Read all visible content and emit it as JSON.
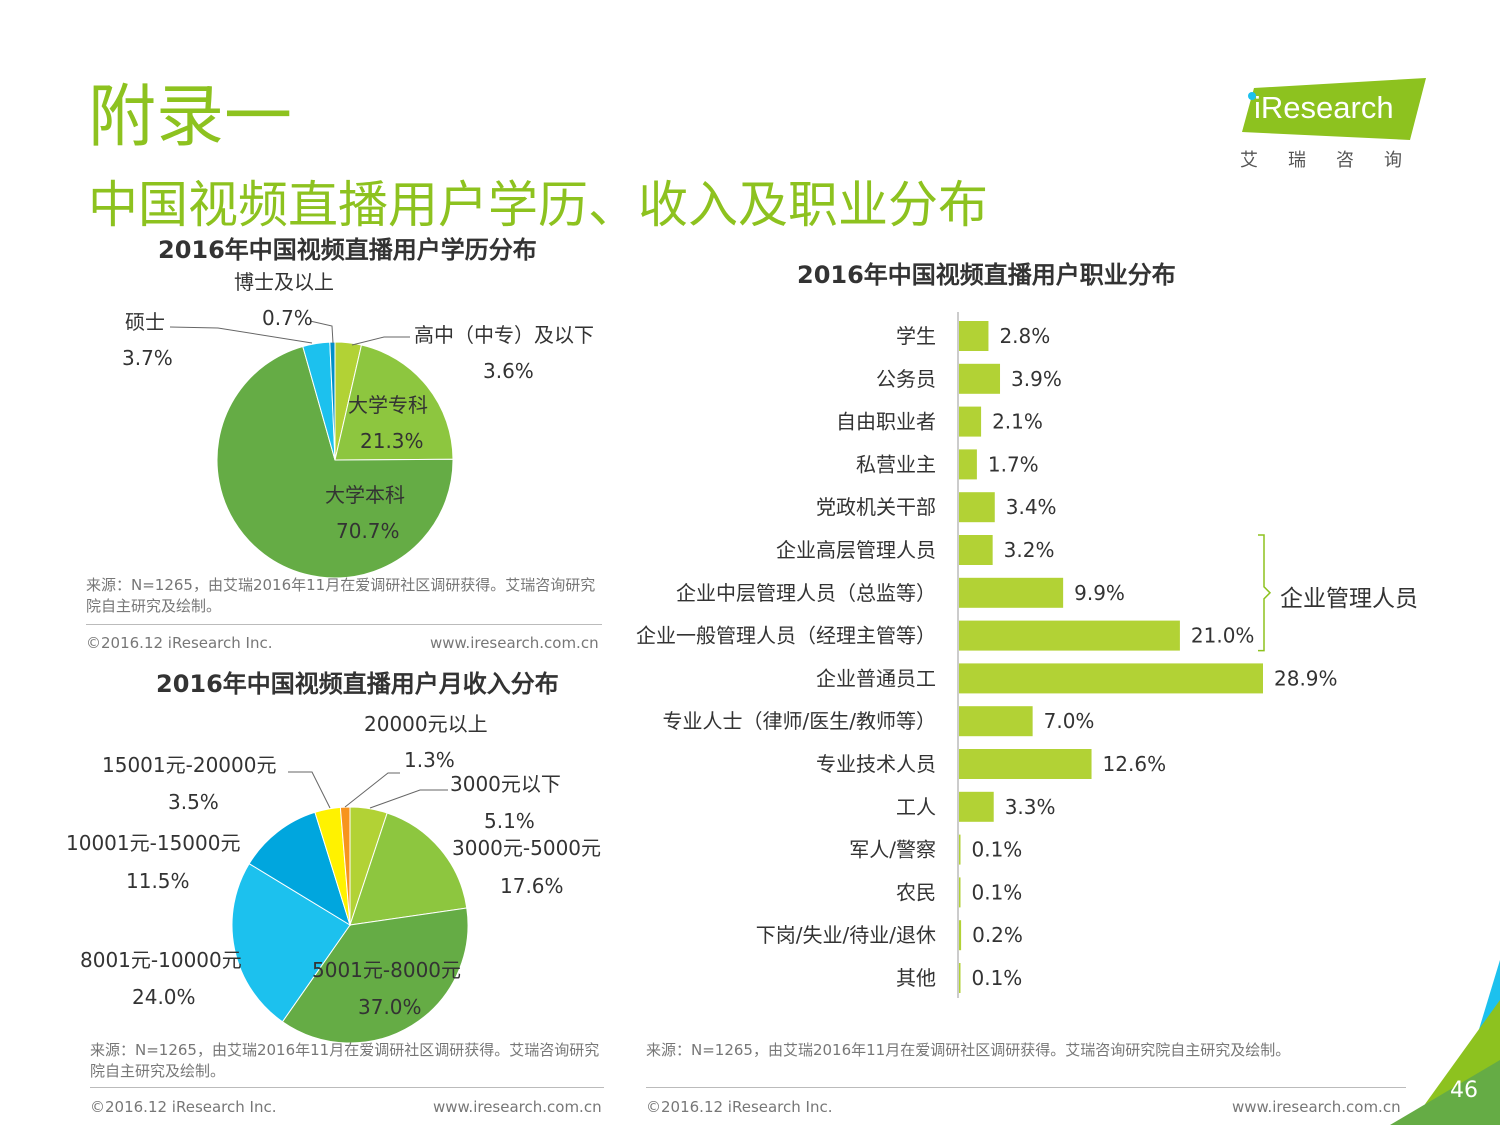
{
  "page": {
    "title": "附录一",
    "subtitle": "中国视频直播用户学历、收入及职业分布",
    "page_number": "46"
  },
  "logo": {
    "brand": "iResearch",
    "sub": "艾瑞咨询"
  },
  "colors": {
    "accent": "#8dc21f",
    "bar": "#b2d235"
  },
  "footer": {
    "copyright": "©2016.12 iResearch Inc.",
    "website": "www.iresearch.com.cn"
  },
  "sources": {
    "education": "来源：N=1265，由艾瑞2016年11月在爱调研社区调研获得。艾瑞咨询研究院自主研究及绘制。",
    "income": "来源：N=1265，由艾瑞2016年11月在爱调研社区调研获得。艾瑞咨询研究院自主研究及绘制。",
    "occupation": "来源：N=1265，由艾瑞2016年11月在爱调研社区调研获得。艾瑞咨询研究院自主研究及绘制。"
  },
  "bracket_label": "企业管理人员",
  "chart_data": [
    {
      "type": "pie",
      "title": "2016年中国视频直播用户学历分布",
      "slices": [
        {
          "label": "高中（中专）及以下",
          "value": 3.6,
          "display": "3.6%",
          "color": "#b2d235"
        },
        {
          "label": "大学专科",
          "value": 21.3,
          "display": "21.3%",
          "color": "#8dc63f"
        },
        {
          "label": "大学本科",
          "value": 70.7,
          "display": "70.7%",
          "color": "#65ac45"
        },
        {
          "label": "硕士",
          "value": 3.7,
          "display": "3.7%",
          "color": "#1cc1ee"
        },
        {
          "label": "博士及以上",
          "value": 0.7,
          "display": "0.7%",
          "color": "#0090c8"
        }
      ]
    },
    {
      "type": "pie",
      "title": "2016年中国视频直播用户月收入分布",
      "slices": [
        {
          "label": "3000元以下",
          "value": 5.1,
          "display": "5.1%",
          "color": "#b2d235"
        },
        {
          "label": "3000元-5000元",
          "value": 17.6,
          "display": "17.6%",
          "color": "#8dc63f"
        },
        {
          "label": "5001元-8000元",
          "value": 37.0,
          "display": "37.0%",
          "color": "#65ac45"
        },
        {
          "label": "8001元-10000元",
          "value": 24.0,
          "display": "24.0%",
          "color": "#1cc1ee"
        },
        {
          "label": "10001元-15000元",
          "value": 11.5,
          "display": "11.5%",
          "color": "#00a6de"
        },
        {
          "label": "15001元-20000元",
          "value": 3.5,
          "display": "3.5%",
          "color": "#fff200"
        },
        {
          "label": "20000元以上",
          "value": 1.3,
          "display": "1.3%",
          "color": "#f7941d"
        }
      ]
    },
    {
      "type": "bar",
      "orientation": "horizontal",
      "title": "2016年中国视频直播用户职业分布",
      "categories": [
        "学生",
        "公务员",
        "自由职业者",
        "私营业主",
        "党政机关干部",
        "企业高层管理人员",
        "企业中层管理人员（总监等）",
        "企业一般管理人员（经理主管等）",
        "企业普通员工",
        "专业人士（律师/医生/教师等）",
        "专业技术人员",
        "工人",
        "军人/警察",
        "农民",
        "下岗/失业/待业/退休",
        "其他"
      ],
      "values": [
        2.8,
        3.9,
        2.1,
        1.7,
        3.4,
        3.2,
        9.9,
        21.0,
        28.9,
        7.0,
        12.6,
        3.3,
        0.1,
        0.1,
        0.2,
        0.1
      ],
      "value_labels": [
        "2.8%",
        "3.9%",
        "2.1%",
        "1.7%",
        "3.4%",
        "3.2%",
        "9.9%",
        "21.0%",
        "28.9%",
        "7.0%",
        "12.6%",
        "3.3%",
        "0.1%",
        "0.1%",
        "0.2%",
        "0.1%"
      ],
      "color": "#b2d235"
    }
  ]
}
